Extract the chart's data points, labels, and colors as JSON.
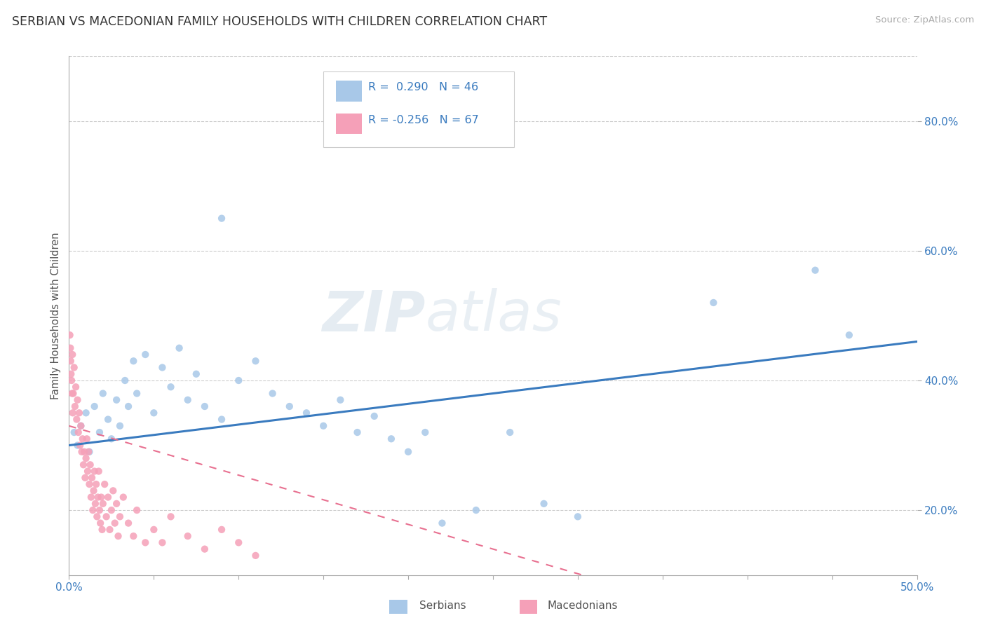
{
  "title": "SERBIAN VS MACEDONIAN FAMILY HOUSEHOLDS WITH CHILDREN CORRELATION CHART",
  "source": "Source: ZipAtlas.com",
  "ylabel": "Family Households with Children",
  "xlim": [
    0.0,
    50.0
  ],
  "ylim": [
    10.0,
    90.0
  ],
  "yticks": [
    20.0,
    40.0,
    60.0,
    80.0
  ],
  "ytick_labels": [
    "20.0%",
    "40.0%",
    "60.0%",
    "80.0%"
  ],
  "xticks": [
    0.0,
    5.0,
    10.0,
    15.0,
    20.0,
    25.0,
    30.0,
    35.0,
    40.0,
    45.0,
    50.0
  ],
  "serbian_color": "#a8c8e8",
  "macedonian_color": "#f5a0b8",
  "serbian_line_color": "#3a7bbf",
  "macedonian_line_color": "#e87090",
  "legend_R_serbian": "R =  0.290",
  "legend_N_serbian": "N = 46",
  "legend_R_macedonian": "R = -0.256",
  "legend_N_macedonian": "N = 67",
  "serbian_scatter": [
    [
      0.3,
      32.0
    ],
    [
      0.5,
      30.0
    ],
    [
      0.7,
      33.0
    ],
    [
      1.0,
      35.0
    ],
    [
      1.2,
      29.0
    ],
    [
      1.5,
      36.0
    ],
    [
      1.8,
      32.0
    ],
    [
      2.0,
      38.0
    ],
    [
      2.3,
      34.0
    ],
    [
      2.5,
      31.0
    ],
    [
      2.8,
      37.0
    ],
    [
      3.0,
      33.0
    ],
    [
      3.3,
      40.0
    ],
    [
      3.5,
      36.0
    ],
    [
      3.8,
      43.0
    ],
    [
      4.0,
      38.0
    ],
    [
      4.5,
      44.0
    ],
    [
      5.0,
      35.0
    ],
    [
      5.5,
      42.0
    ],
    [
      6.0,
      39.0
    ],
    [
      6.5,
      45.0
    ],
    [
      7.0,
      37.0
    ],
    [
      7.5,
      41.0
    ],
    [
      8.0,
      36.0
    ],
    [
      9.0,
      34.0
    ],
    [
      10.0,
      40.0
    ],
    [
      11.0,
      43.0
    ],
    [
      12.0,
      38.0
    ],
    [
      13.0,
      36.0
    ],
    [
      14.0,
      35.0
    ],
    [
      15.0,
      33.0
    ],
    [
      16.0,
      37.0
    ],
    [
      17.0,
      32.0
    ],
    [
      18.0,
      34.5
    ],
    [
      19.0,
      31.0
    ],
    [
      20.0,
      29.0
    ],
    [
      21.0,
      32.0
    ],
    [
      22.0,
      18.0
    ],
    [
      24.0,
      20.0
    ],
    [
      26.0,
      32.0
    ],
    [
      28.0,
      21.0
    ],
    [
      30.0,
      19.0
    ],
    [
      9.0,
      65.0
    ],
    [
      38.0,
      52.0
    ],
    [
      44.0,
      57.0
    ],
    [
      46.0,
      47.0
    ]
  ],
  "macedonian_scatter": [
    [
      0.05,
      47.0
    ],
    [
      0.1,
      43.0
    ],
    [
      0.15,
      40.0
    ],
    [
      0.2,
      44.0
    ],
    [
      0.25,
      38.0
    ],
    [
      0.3,
      42.0
    ],
    [
      0.35,
      36.0
    ],
    [
      0.4,
      39.0
    ],
    [
      0.45,
      34.0
    ],
    [
      0.5,
      37.0
    ],
    [
      0.55,
      32.0
    ],
    [
      0.6,
      35.0
    ],
    [
      0.65,
      30.0
    ],
    [
      0.7,
      33.0
    ],
    [
      0.75,
      29.0
    ],
    [
      0.8,
      31.0
    ],
    [
      0.85,
      27.0
    ],
    [
      0.9,
      29.0
    ],
    [
      0.95,
      25.0
    ],
    [
      1.0,
      28.0
    ],
    [
      1.05,
      31.0
    ],
    [
      1.1,
      26.0
    ],
    [
      1.15,
      29.0
    ],
    [
      1.2,
      24.0
    ],
    [
      1.25,
      27.0
    ],
    [
      1.3,
      22.0
    ],
    [
      1.35,
      25.0
    ],
    [
      1.4,
      20.0
    ],
    [
      1.45,
      23.0
    ],
    [
      1.5,
      26.0
    ],
    [
      1.55,
      21.0
    ],
    [
      1.6,
      24.0
    ],
    [
      1.65,
      19.0
    ],
    [
      1.7,
      22.0
    ],
    [
      1.75,
      26.0
    ],
    [
      1.8,
      20.0
    ],
    [
      1.85,
      18.0
    ],
    [
      1.9,
      22.0
    ],
    [
      1.95,
      17.0
    ],
    [
      2.0,
      21.0
    ],
    [
      2.1,
      24.0
    ],
    [
      2.2,
      19.0
    ],
    [
      2.3,
      22.0
    ],
    [
      2.4,
      17.0
    ],
    [
      2.5,
      20.0
    ],
    [
      2.6,
      23.0
    ],
    [
      2.7,
      18.0
    ],
    [
      2.8,
      21.0
    ],
    [
      2.9,
      16.0
    ],
    [
      3.0,
      19.0
    ],
    [
      3.2,
      22.0
    ],
    [
      3.5,
      18.0
    ],
    [
      3.8,
      16.0
    ],
    [
      4.0,
      20.0
    ],
    [
      4.5,
      15.0
    ],
    [
      5.0,
      17.0
    ],
    [
      5.5,
      15.0
    ],
    [
      6.0,
      19.0
    ],
    [
      7.0,
      16.0
    ],
    [
      8.0,
      14.0
    ],
    [
      9.0,
      17.0
    ],
    [
      10.0,
      15.0
    ],
    [
      11.0,
      13.0
    ],
    [
      0.08,
      45.0
    ],
    [
      0.12,
      41.0
    ],
    [
      0.18,
      38.0
    ],
    [
      0.22,
      35.0
    ]
  ]
}
